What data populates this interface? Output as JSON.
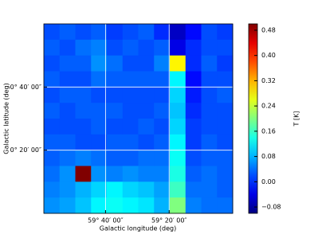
{
  "chart_data": {
    "type": "heatmap",
    "xlabel": "Galactic longitude (deg)",
    "ylabel": "Galactic latitude (deg)",
    "colorbar_label": "T [K]",
    "xlim": [
      59.99,
      59.0
    ],
    "ylim": [
      0.0,
      1.0
    ],
    "clim": [
      -0.1,
      0.5
    ],
    "xticks": [
      {
        "value": 59.6667,
        "label": "59° 40′ 00″"
      },
      {
        "value": 59.3333,
        "label": "59° 20′ 00″"
      }
    ],
    "yticks": [
      {
        "value": 0.6667,
        "label": "0° 40′ 00″"
      },
      {
        "value": 0.3333,
        "label": "0° 20′ 00″"
      }
    ],
    "cticks": [
      -0.08,
      0.0,
      0.08,
      0.16,
      0.24,
      0.32,
      0.4,
      0.48
    ],
    "ctick_labels": [
      "−0.08",
      "0.00",
      "0.08",
      "0.16",
      "0.24",
      "0.32",
      "0.40",
      "0.48"
    ],
    "colormap": "jet",
    "grid": true,
    "z": [
      [
        0.02,
        0.03,
        0.02,
        0.03,
        0.01,
        0.02,
        0.03,
        0.0,
        -0.06,
        -0.02,
        0.02,
        0.01
      ],
      [
        0.03,
        0.02,
        0.04,
        0.05,
        0.02,
        0.03,
        0.02,
        0.03,
        -0.04,
        0.0,
        0.02,
        0.02
      ],
      [
        0.02,
        0.03,
        0.03,
        0.06,
        0.04,
        0.02,
        0.02,
        0.05,
        0.28,
        0.0,
        0.03,
        0.01
      ],
      [
        0.03,
        0.02,
        0.02,
        0.04,
        0.03,
        0.03,
        0.03,
        0.03,
        0.12,
        -0.02,
        0.02,
        0.02
      ],
      [
        0.02,
        0.03,
        0.03,
        0.02,
        0.02,
        0.02,
        0.02,
        0.02,
        0.1,
        -0.01,
        0.02,
        0.03
      ],
      [
        0.03,
        0.02,
        0.03,
        0.03,
        0.03,
        0.02,
        0.02,
        0.03,
        0.09,
        0.0,
        0.02,
        0.02
      ],
      [
        0.02,
        0.02,
        0.02,
        0.03,
        0.02,
        0.02,
        0.03,
        0.02,
        0.1,
        0.01,
        0.02,
        0.02
      ],
      [
        0.03,
        0.03,
        0.02,
        0.02,
        0.03,
        0.03,
        0.02,
        0.03,
        0.12,
        0.01,
        0.03,
        0.02
      ],
      [
        0.03,
        0.04,
        0.05,
        0.04,
        0.03,
        0.03,
        0.04,
        0.04,
        0.13,
        0.02,
        0.03,
        0.03
      ],
      [
        0.04,
        0.06,
        0.5,
        0.06,
        0.05,
        0.06,
        0.05,
        0.05,
        0.14,
        0.03,
        0.04,
        0.03
      ],
      [
        0.05,
        0.06,
        0.08,
        0.1,
        0.12,
        0.1,
        0.09,
        0.07,
        0.16,
        0.04,
        0.04,
        0.03
      ],
      [
        0.06,
        0.07,
        0.09,
        0.12,
        0.13,
        0.12,
        0.11,
        0.08,
        0.2,
        0.05,
        0.04,
        0.04
      ]
    ]
  }
}
